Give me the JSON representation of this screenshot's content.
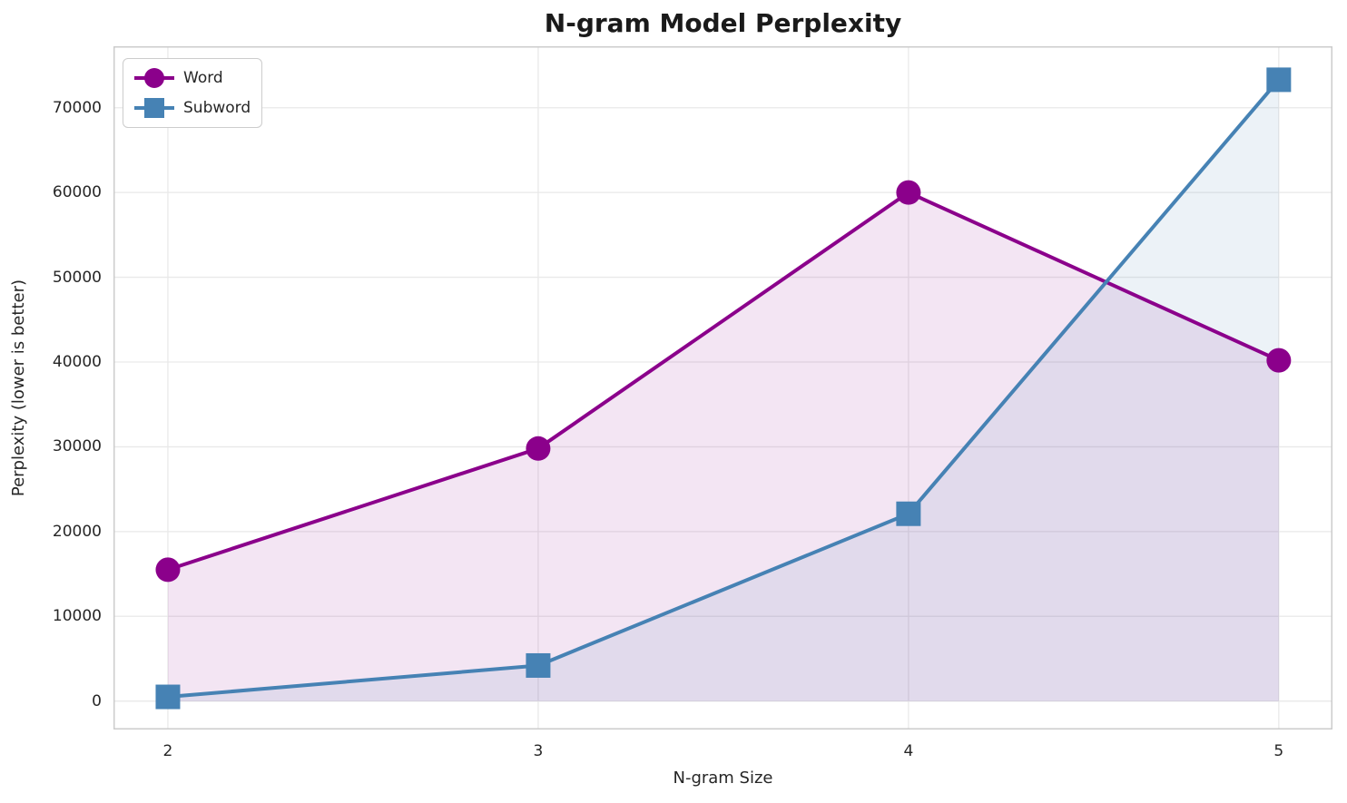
{
  "chart_data": {
    "type": "line",
    "title": "N-gram Model Perplexity",
    "xlabel": "N-gram Size",
    "ylabel": "Perplexity (lower is better)",
    "x": [
      2,
      3,
      4,
      5
    ],
    "series": [
      {
        "name": "Word",
        "values": [
          15500,
          29800,
          60000,
          40200
        ],
        "color": "#8B008B",
        "marker": "circle",
        "fill_alpha": 0.1
      },
      {
        "name": "Subword",
        "values": [
          500,
          4200,
          22100,
          73300
        ],
        "color": "#4682B4",
        "marker": "square",
        "fill_alpha": 0.1
      }
    ],
    "xticks": [
      2,
      3,
      4,
      5
    ],
    "yticks": [
      0,
      10000,
      20000,
      30000,
      40000,
      50000,
      60000,
      70000
    ],
    "xlim": [
      1.853,
      5.145
    ],
    "ylim": [
      -3350,
      77250
    ],
    "grid": true,
    "area_fill_baseline": 0,
    "legend_position": "upper left"
  },
  "style": {
    "grid_color": "#e9e9e9",
    "spine_color": "#cccccc",
    "text_color": "#262626",
    "title_color": "#1a1a1a",
    "background": "#ffffff",
    "line_width": 4,
    "marker_size": 27
  }
}
